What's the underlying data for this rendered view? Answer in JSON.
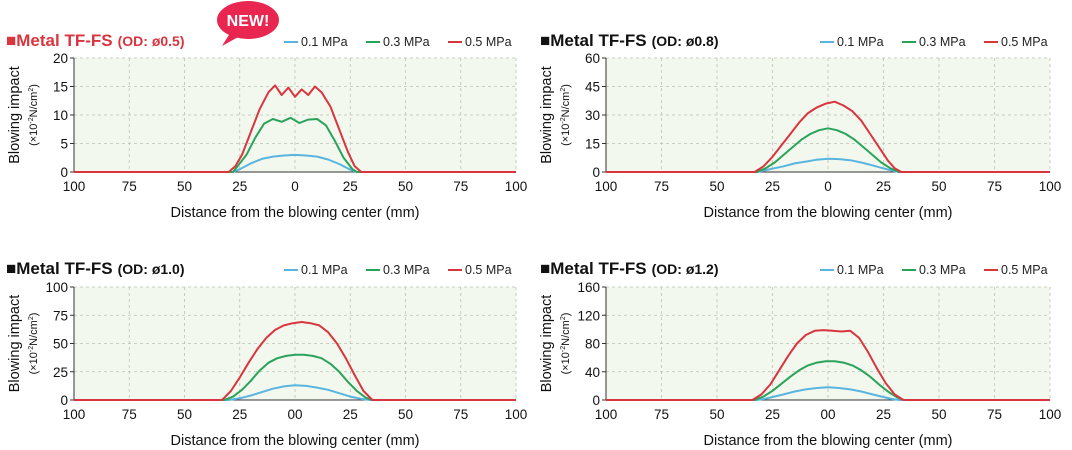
{
  "colors": {
    "series": [
      "#5ab4e0",
      "#2aa35a",
      "#d9353f"
    ],
    "title_accent": "#d9353f",
    "badge": "#e8264f",
    "plot_bg": "#f3f8ee",
    "grid": "#b9c3b0"
  },
  "badge_text": "NEW!",
  "common": {
    "xlabel": "Distance from the blowing center (mm)",
    "ylabel_main": "Blowing impact",
    "ylabel_unit_prefix": "(×10",
    "ylabel_unit_exp": "-2",
    "ylabel_unit_mid": "N/cm",
    "ylabel_unit_exp2": "2",
    "ylabel_unit_suffix": ")",
    "legend": [
      "0.1 MPa",
      "0.3 MPa",
      "0.5 MPa"
    ]
  },
  "chart_data": [
    {
      "type": "line",
      "title_main": "■Metal TF-FS",
      "title_sub": "(OD: ø0.5)",
      "highlight": true,
      "xlim": [
        -100,
        100
      ],
      "x_ticks": [
        -100,
        -75,
        -50,
        -25,
        0,
        25,
        50,
        75,
        100
      ],
      "x_tick_labels": [
        "100",
        "75",
        "50",
        "25",
        "0",
        "25",
        "50",
        "75",
        "100"
      ],
      "ylim": [
        0,
        20
      ],
      "y_ticks": [
        0,
        5,
        10,
        15,
        20
      ],
      "y_tick_labels": [
        "0",
        "5",
        "10",
        "15",
        "20"
      ],
      "series": [
        {
          "name": "0.1 MPa",
          "x": [
            -28,
            -25,
            -20,
            -15,
            -10,
            -5,
            0,
            5,
            10,
            15,
            20,
            25,
            28
          ],
          "y": [
            0,
            0.5,
            1.5,
            2.3,
            2.7,
            2.9,
            3,
            2.9,
            2.7,
            2.2,
            1.4,
            0.4,
            0
          ]
        },
        {
          "name": "0.3 MPa",
          "x": [
            -28,
            -26,
            -22,
            -18,
            -14,
            -10,
            -6,
            -2,
            2,
            6,
            10,
            14,
            18,
            22,
            26,
            28
          ],
          "y": [
            0,
            1,
            3,
            6,
            8.5,
            9.3,
            8.8,
            9.5,
            8.6,
            9.2,
            9.3,
            8.2,
            5.5,
            2.5,
            0.5,
            0
          ]
        },
        {
          "name": "0.5 MPa",
          "x": [
            -30,
            -27,
            -24,
            -20,
            -16,
            -12,
            -9,
            -6,
            -3,
            0,
            3,
            6,
            9,
            12,
            16,
            20,
            24,
            27,
            30
          ],
          "y": [
            0,
            1,
            3,
            7,
            11,
            14,
            15.2,
            13.5,
            14.8,
            13.2,
            14.5,
            13.5,
            15,
            14,
            11.5,
            7.5,
            3.5,
            1,
            0
          ]
        }
      ]
    },
    {
      "type": "line",
      "title_main": "■Metal TF-FS",
      "title_sub": "(OD: ø0.8)",
      "highlight": false,
      "xlim": [
        -100,
        100
      ],
      "x_ticks": [
        -100,
        -75,
        -50,
        -25,
        0,
        25,
        50,
        75,
        100
      ],
      "x_tick_labels": [
        "100",
        "75",
        "50",
        "25",
        "0",
        "25",
        "50",
        "75",
        "100"
      ],
      "ylim": [
        0,
        60
      ],
      "y_ticks": [
        0,
        15,
        30,
        45,
        60
      ],
      "y_tick_labels": [
        "0",
        "15",
        "30",
        "45",
        "60"
      ],
      "series": [
        {
          "name": "0.1 MPa",
          "x": [
            -32,
            -28,
            -24,
            -20,
            -15,
            -10,
            -5,
            0,
            5,
            10,
            15,
            20,
            24,
            28,
            32
          ],
          "y": [
            0,
            1,
            2,
            3,
            4.5,
            5.5,
            6.5,
            7,
            6.8,
            6.2,
            5,
            3.5,
            2.2,
            1,
            0
          ]
        },
        {
          "name": "0.3 MPa",
          "x": [
            -32,
            -28,
            -24,
            -20,
            -16,
            -12,
            -8,
            -4,
            0,
            4,
            8,
            12,
            16,
            20,
            24,
            28,
            32
          ],
          "y": [
            0,
            2,
            5,
            9,
            13,
            17,
            20,
            22,
            23,
            22,
            20,
            17,
            13,
            9,
            5,
            2,
            0
          ]
        },
        {
          "name": "0.5 MPa",
          "x": [
            -33,
            -29,
            -25,
            -21,
            -17,
            -13,
            -9,
            -5,
            -1,
            3,
            7,
            11,
            15,
            19,
            23,
            27,
            30,
            33
          ],
          "y": [
            0,
            3,
            8,
            14,
            20,
            26,
            31,
            34,
            36,
            37,
            35,
            32,
            27,
            20,
            13,
            6,
            2,
            0
          ]
        }
      ]
    },
    {
      "type": "line",
      "title_main": "■Metal TF-FS",
      "title_sub": "(OD: ø1.0)",
      "highlight": false,
      "xlim": [
        -100,
        100
      ],
      "x_ticks": [
        -100,
        -75,
        -50,
        -25,
        0,
        25,
        50,
        75,
        100
      ],
      "x_tick_labels": [
        "100",
        "75",
        "50",
        "25",
        "00",
        "25",
        "50",
        "75",
        "100"
      ],
      "ylim": [
        0,
        100
      ],
      "y_ticks": [
        0,
        25,
        50,
        75,
        100
      ],
      "y_tick_labels": [
        "0",
        "25",
        "50",
        "75",
        "100"
      ],
      "series": [
        {
          "name": "0.1 MPa",
          "x": [
            -30,
            -25,
            -20,
            -15,
            -10,
            -5,
            0,
            5,
            10,
            15,
            20,
            25,
            30,
            34
          ],
          "y": [
            0,
            1.5,
            4,
            7,
            10,
            12,
            13,
            12.5,
            11,
            9,
            6,
            3,
            1,
            0
          ]
        },
        {
          "name": "0.3 MPa",
          "x": [
            -32,
            -28,
            -24,
            -20,
            -16,
            -12,
            -8,
            -4,
            0,
            4,
            8,
            12,
            16,
            20,
            24,
            28,
            32,
            35
          ],
          "y": [
            0,
            3,
            9,
            17,
            26,
            33,
            37,
            39,
            40,
            40,
            39,
            37,
            32,
            25,
            16,
            8,
            2,
            0
          ]
        },
        {
          "name": "0.5 MPa",
          "x": [
            -33,
            -29,
            -25,
            -21,
            -17,
            -13,
            -9,
            -5,
            -1,
            3,
            7,
            11,
            15,
            19,
            23,
            27,
            31,
            35
          ],
          "y": [
            0,
            8,
            20,
            33,
            45,
            55,
            62,
            66,
            68,
            69,
            68,
            66,
            60,
            50,
            37,
            22,
            8,
            0
          ]
        }
      ]
    },
    {
      "type": "line",
      "title_main": "■Metal TF-FS",
      "title_sub": "(OD: ø1.2)",
      "highlight": false,
      "xlim": [
        -100,
        100
      ],
      "x_ticks": [
        -100,
        -75,
        -50,
        -25,
        0,
        25,
        50,
        75,
        100
      ],
      "x_tick_labels": [
        "100",
        "75",
        "50",
        "25",
        "00",
        "25",
        "50",
        "75",
        "100"
      ],
      "ylim": [
        0,
        160
      ],
      "y_ticks": [
        0,
        40,
        80,
        120,
        160
      ],
      "y_tick_labels": [
        "0",
        "40",
        "80",
        "120",
        "160"
      ],
      "series": [
        {
          "name": "0.1 MPa",
          "x": [
            -32,
            -28,
            -24,
            -20,
            -15,
            -10,
            -5,
            0,
            5,
            10,
            15,
            20,
            24,
            28,
            32
          ],
          "y": [
            0,
            2,
            5,
            8,
            12,
            15,
            17,
            18,
            17,
            15,
            12,
            8,
            5,
            2,
            0
          ]
        },
        {
          "name": "0.3 MPa",
          "x": [
            -33,
            -29,
            -25,
            -21,
            -17,
            -13,
            -9,
            -5,
            -1,
            3,
            7,
            11,
            15,
            19,
            23,
            27,
            31,
            34
          ],
          "y": [
            0,
            5,
            13,
            23,
            33,
            42,
            49,
            53,
            55,
            55,
            53,
            49,
            42,
            33,
            22,
            12,
            4,
            0
          ]
        },
        {
          "name": "0.5 MPa",
          "x": [
            -34,
            -30,
            -26,
            -22,
            -18,
            -14,
            -10,
            -6,
            -2,
            2,
            6,
            10,
            14,
            18,
            22,
            26,
            30,
            34
          ],
          "y": [
            0,
            8,
            22,
            42,
            62,
            80,
            92,
            98,
            99,
            98,
            97,
            98,
            88,
            68,
            45,
            24,
            8,
            0
          ]
        }
      ]
    }
  ]
}
